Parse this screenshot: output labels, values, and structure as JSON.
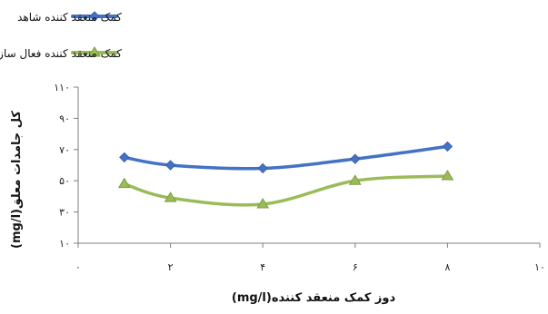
{
  "chart_data": {
    "type": "line",
    "x": [
      1,
      2,
      4,
      6,
      8
    ],
    "xlim": [
      0,
      10
    ],
    "ylim": [
      10,
      110
    ],
    "xticks": [
      "۰",
      "۲",
      "۴",
      "۶",
      "۸",
      "۱۰"
    ],
    "yticks": [
      "۱۰",
      "۳۰",
      "۵۰",
      "۷۰",
      "۹۰",
      "۱۱۰"
    ],
    "xlabel": "دوز کمک منعقد کننده(mg/l)",
    "ylabel": "کل جامدات معلق(mg/l)",
    "grid": false,
    "legend_position": "top",
    "series": [
      {
        "name": "کمک منعقد کننده شاهد",
        "color": "#4472C4",
        "marker": "diamond",
        "values": [
          65,
          60,
          58,
          64,
          72
        ]
      },
      {
        "name": "کمک منعقد کننده فعال سازی شده با نانودرات اکسیدآلومینیم",
        "color": "#9BBB59",
        "marker": "triangle",
        "values": [
          48,
          39,
          35,
          50,
          53
        ]
      }
    ]
  }
}
